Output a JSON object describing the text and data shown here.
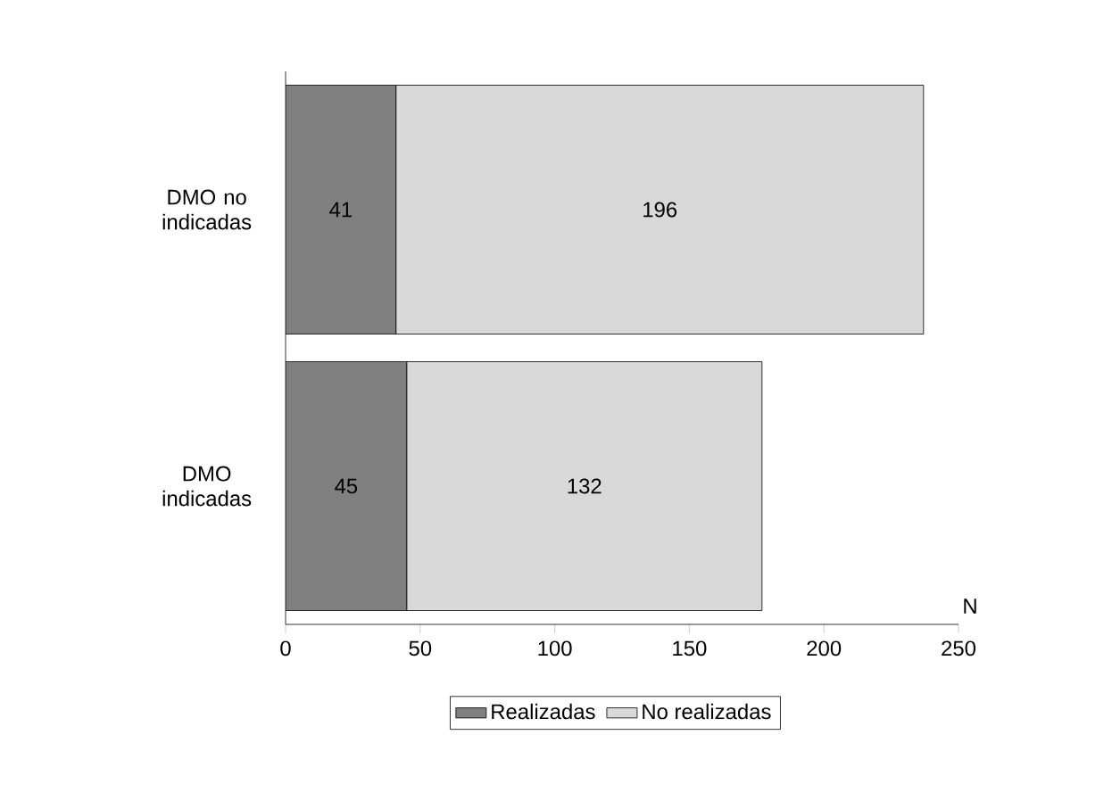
{
  "chart_data": {
    "type": "bar",
    "orientation": "horizontal",
    "stacked": true,
    "categories": [
      "DMO no indicadas",
      "DMO indicadas"
    ],
    "series": [
      {
        "name": "Realizadas",
        "color": "#808080",
        "values": [
          41,
          45
        ]
      },
      {
        "name": "No realizadas",
        "color": "#d9d9d9",
        "values": [
          196,
          132
        ]
      }
    ],
    "xlim": [
      0,
      250
    ],
    "xticks": [
      0,
      50,
      100,
      150,
      200,
      250
    ],
    "xlabel": "N",
    "legend": "bottom",
    "data_labels": true
  }
}
